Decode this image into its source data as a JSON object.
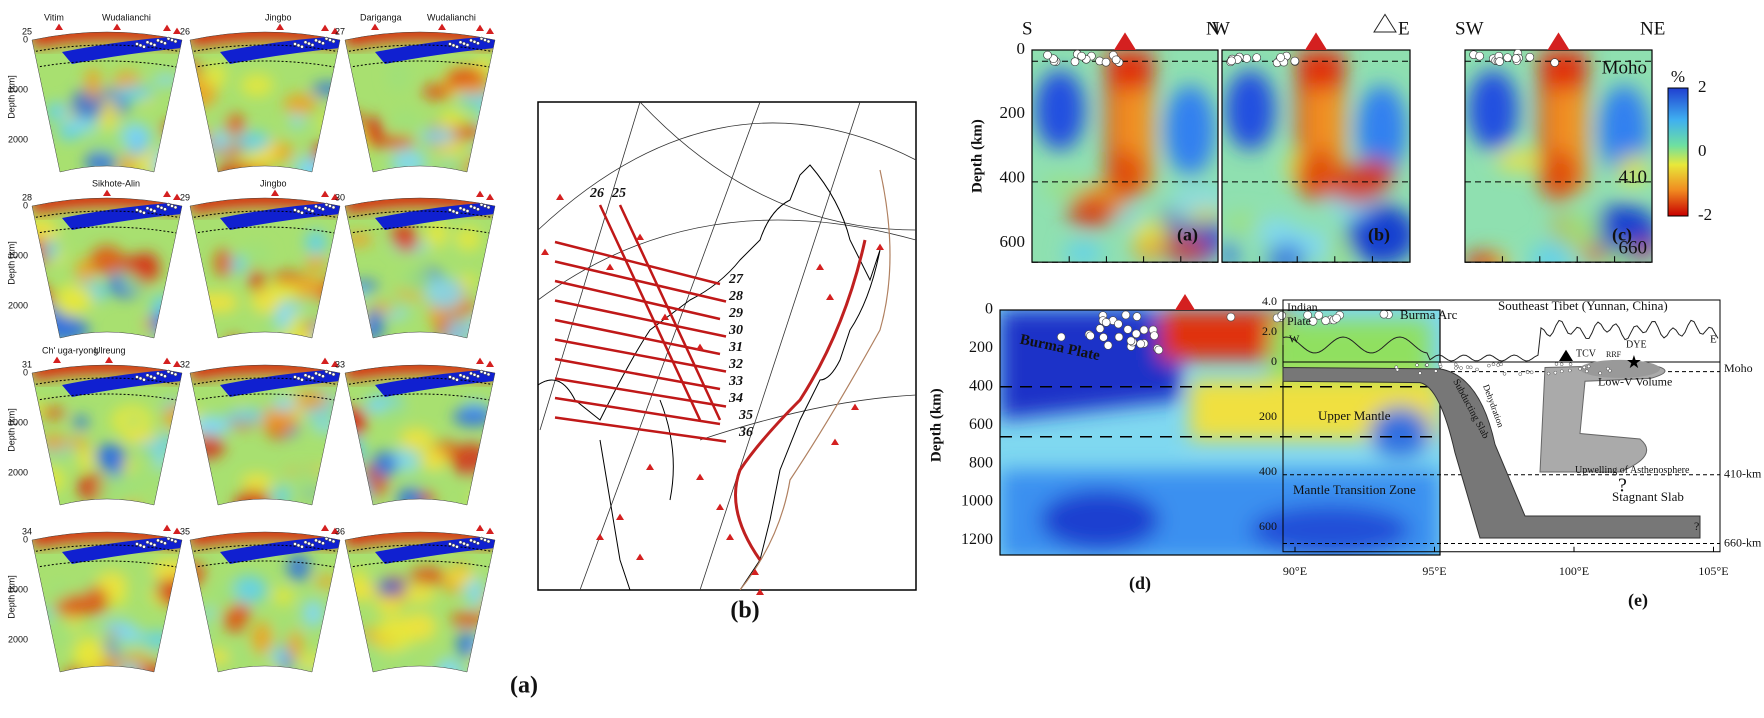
{
  "panel_a": {
    "label": "(a)",
    "depth_ticks": [
      "0",
      "1000",
      "2000"
    ],
    "depth_label": "Depth [km]",
    "sections": [
      {
        "number": "25",
        "places": [
          "Vitim",
          "Wudalianchi"
        ]
      },
      {
        "number": "26",
        "places": [
          "Jingbo"
        ]
      },
      {
        "number": "27",
        "places": [
          "Dariganga",
          "Wudalianchi"
        ]
      },
      {
        "number": "28",
        "places": [
          "Sikhote-Alin"
        ]
      },
      {
        "number": "29",
        "places": [
          "Jingbo"
        ]
      },
      {
        "number": "30",
        "places": []
      },
      {
        "number": "31",
        "places": [
          "Ch' uga-ryong",
          "Ulreung"
        ]
      },
      {
        "number": "32",
        "places": []
      },
      {
        "number": "33",
        "places": []
      },
      {
        "number": "34",
        "places": []
      },
      {
        "number": "35",
        "places": []
      },
      {
        "number": "36",
        "places": []
      }
    ]
  },
  "panel_b": {
    "label": "(b)",
    "profile_labels": [
      "26",
      "25",
      "27",
      "28",
      "29",
      "30",
      "31",
      "32",
      "33",
      "34",
      "35",
      "36"
    ]
  },
  "panel_c": {
    "sections": [
      {
        "left": "S",
        "right": "N",
        "label": "(a)"
      },
      {
        "left": "W",
        "right": "E",
        "label": "(b)"
      },
      {
        "left": "SW",
        "right": "NE",
        "label": "(c)"
      }
    ],
    "depth_ticks": [
      "0",
      "200",
      "400",
      "600"
    ],
    "depth_label": "Depth (km)",
    "moho": "Moho",
    "d410": "410",
    "d660": "660",
    "colorbar": {
      "unit": "%",
      "ticks": [
        "2",
        "0",
        "-2"
      ]
    }
  },
  "panel_d": {
    "label": "(d)",
    "depth_ticks": [
      "0",
      "200",
      "400",
      "600",
      "800",
      "1000",
      "1200"
    ],
    "depth_label": "Depth (km)",
    "plate": "Burma Plate"
  },
  "panel_e": {
    "label": "(e)",
    "elev_ticks": [
      "4.0",
      "2.0",
      "0"
    ],
    "depth_ticks": [
      "200",
      "400",
      "600"
    ],
    "x_ticks": [
      "90°E",
      "95°E",
      "100°E",
      "105°E"
    ],
    "texts": [
      "Indian",
      "Plate",
      "W",
      "Burma Arc",
      "Southeast Tibet (Yunnan, China)",
      "E",
      "TCV",
      "RRF",
      "DYE",
      "Moho",
      "Low-V Volume",
      "Upper Mantle",
      "Subducting Slab",
      "Dehydration",
      "Upwelling of Asthenosphere",
      "410-km",
      "Mantle Transition Zone",
      "Stagnant Slab",
      "?",
      "?",
      "660-km"
    ]
  }
}
